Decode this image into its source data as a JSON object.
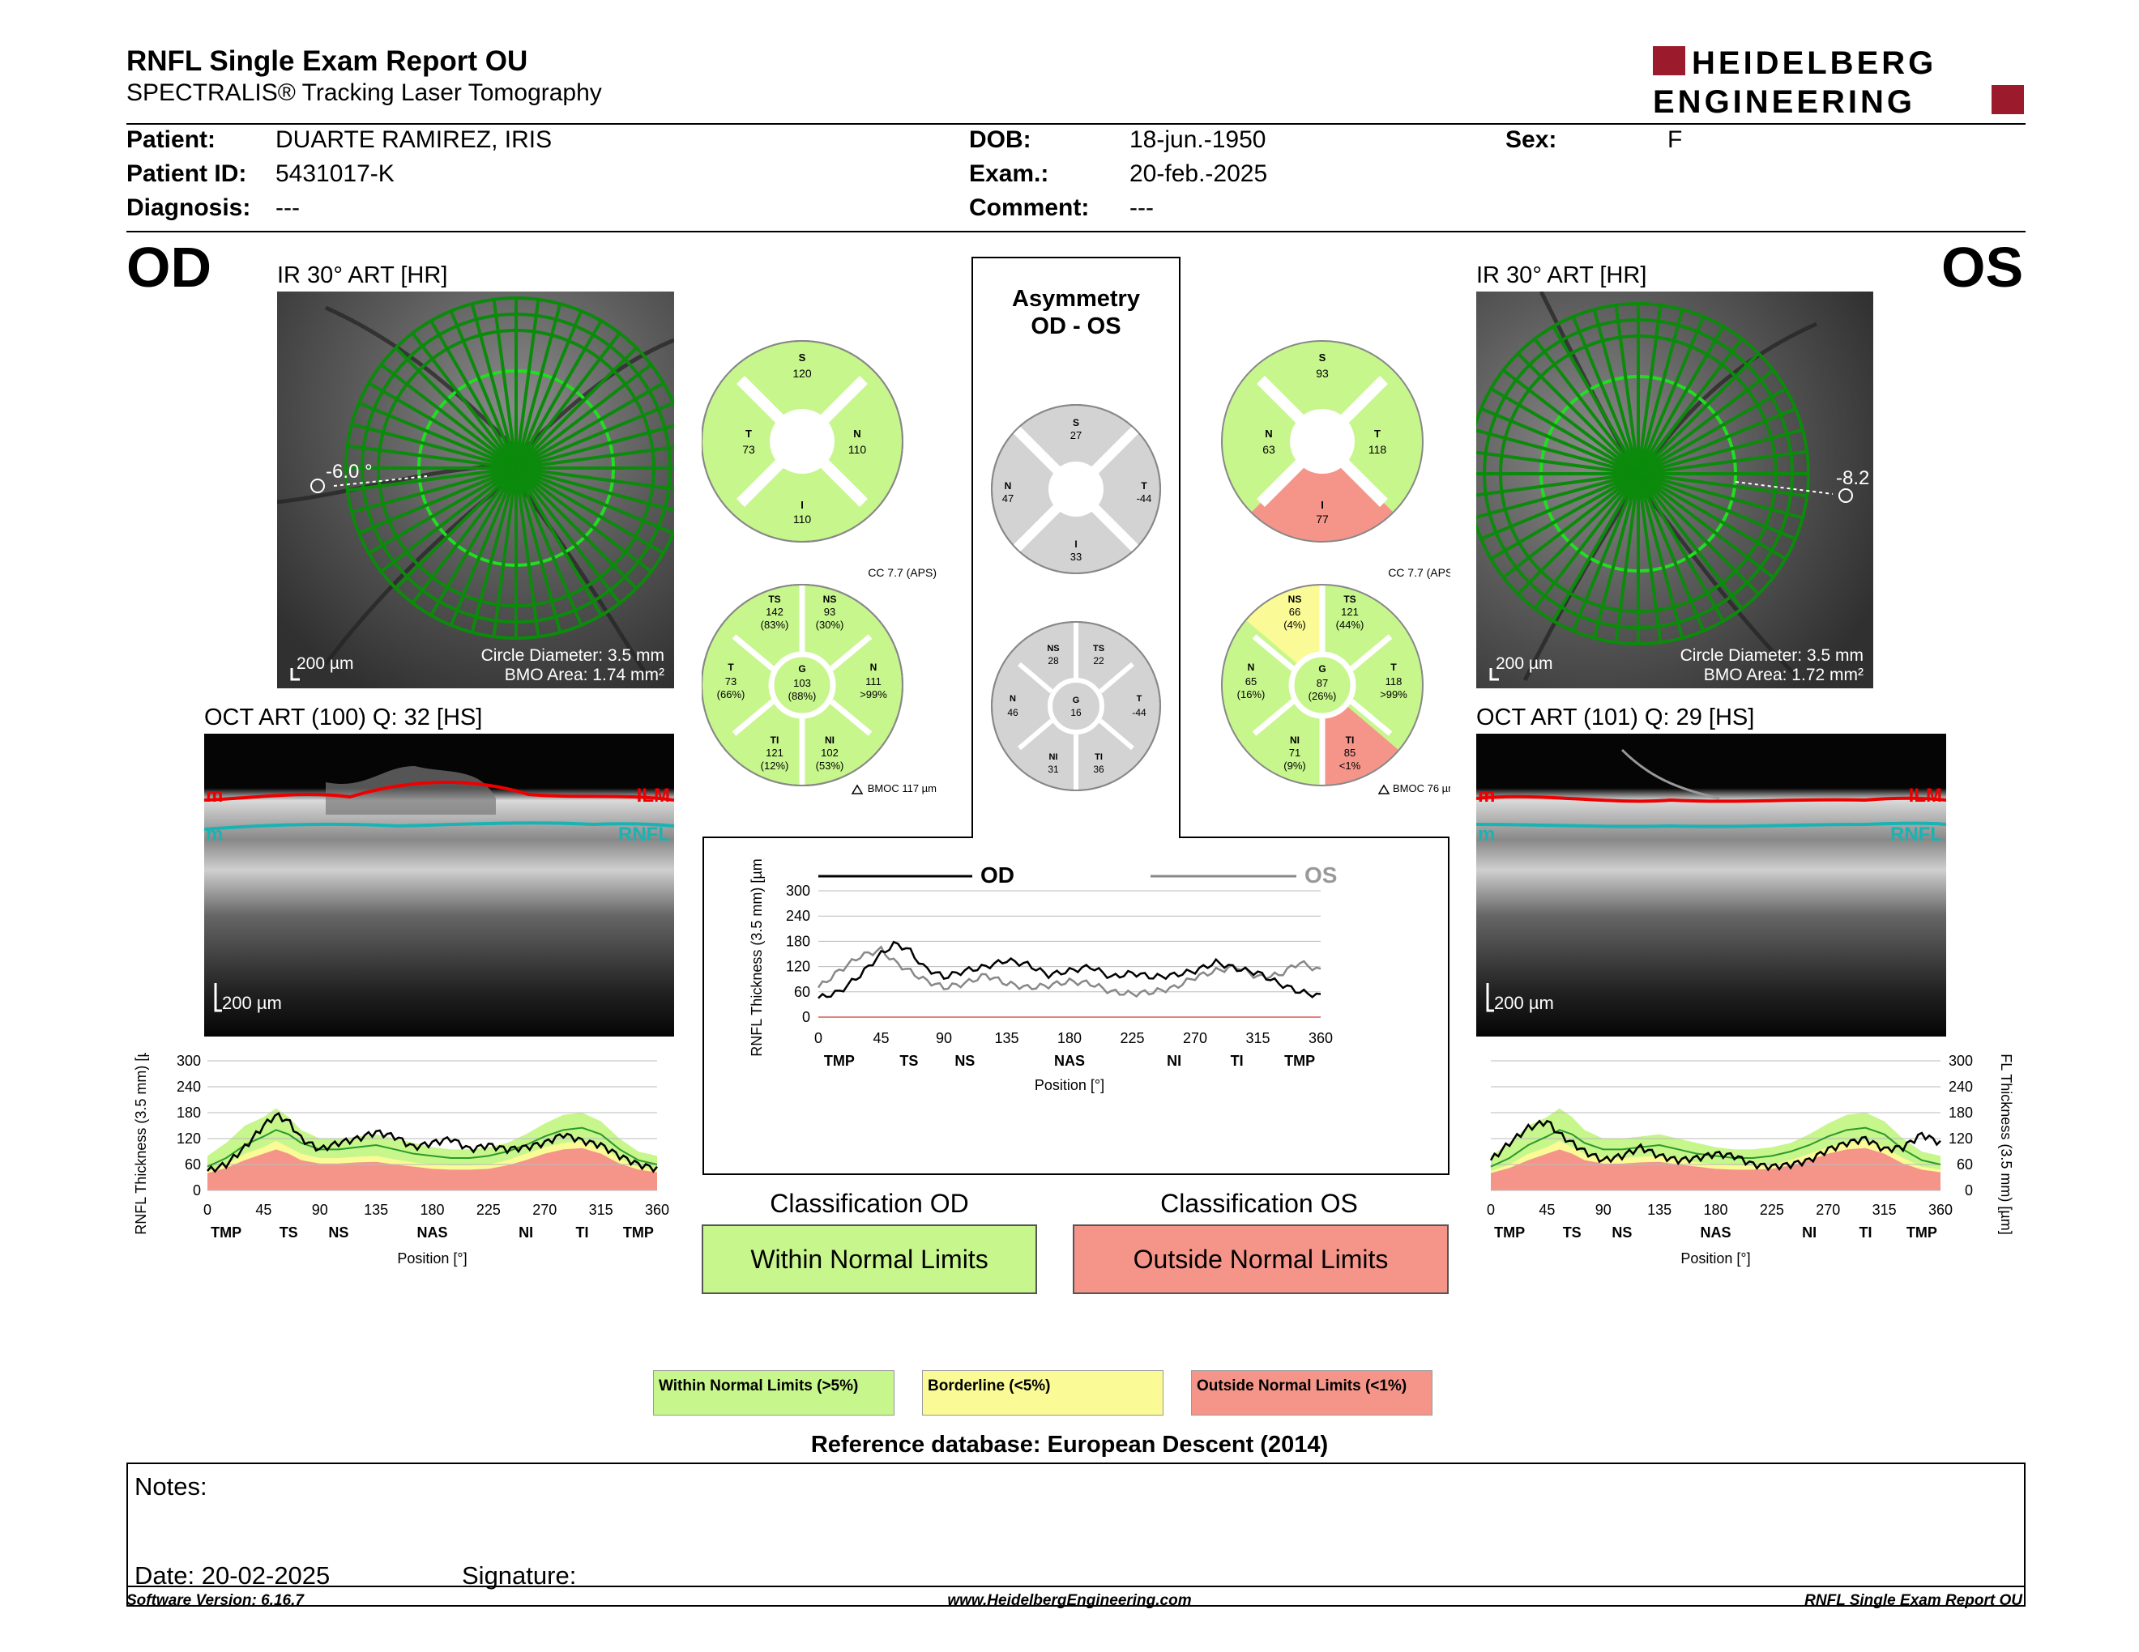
{
  "header": {
    "title": "RNFL Single Exam Report OU",
    "subtitle": "SPECTRALIS® Tracking Laser Tomography",
    "logo_line1": "HEIDELBERG",
    "logo_line2": "ENGINEERING"
  },
  "patient": {
    "patient_label": "Patient:",
    "patient_value": "DUARTE RAMIREZ, IRIS",
    "id_label": "Patient ID:",
    "id_value": "5431017-K",
    "diagnosis_label": "Diagnosis:",
    "diagnosis_value": "---",
    "dob_label": "DOB:",
    "dob_value": "18-jun.-1950",
    "exam_label": "Exam.:",
    "exam_value": "20-feb.-2025",
    "comment_label": "Comment:",
    "comment_value": "---",
    "sex_label": "Sex:",
    "sex_value": "F"
  },
  "od": {
    "eye": "OD",
    "ir_title": "IR 30° ART [HR]",
    "angle": "-6.0 °",
    "scale": "200 µm",
    "circle_diameter": "Circle Diameter: 3.5 mm",
    "bmo_area": "BMO Area: 1.74 mm²",
    "oct_title": "OCT ART (100) Q: 32 [HS]",
    "oct_scale": "200 µm",
    "ilm": "ILM",
    "ilm_cut": "m",
    "rnfl": "RNFL",
    "rnfl_cut": "m",
    "sectors6": {
      "S": "120",
      "T": "73",
      "N": "110",
      "I": "110"
    },
    "cc": "CC 7.7 (APS)",
    "bmoc": "BMOC 117 µm",
    "sectors": {
      "TS": {
        "v": "142",
        "p": "(83%)"
      },
      "NS": {
        "v": "93",
        "p": "(30%)"
      },
      "T": {
        "v": "73",
        "p": "(66%)"
      },
      "G": {
        "v": "103",
        "p": "(88%)"
      },
      "N": {
        "v": "111",
        "p": ">99%"
      },
      "TI": {
        "v": "121",
        "p": "(12%)"
      },
      "NI": {
        "v": "102",
        "p": "(53%)"
      }
    },
    "classification_title": "Classification OD",
    "classification": "Within Normal Limits"
  },
  "os": {
    "eye": "OS",
    "ir_title": "IR 30° ART [HR]",
    "angle": "-8.2",
    "scale": "200 µm",
    "circle_diameter": "Circle Diameter: 3.5 mm",
    "bmo_area": "BMO Area: 1.72 mm²",
    "oct_title": "OCT ART (101) Q: 29 [HS]",
    "oct_scale": "200 µm",
    "ilm": "ILM",
    "ilm_cut": "m",
    "rnfl": "RNFL",
    "rnfl_cut": "m",
    "sectors6": {
      "S": "93",
      "N": "63",
      "T": "118",
      "I": "77"
    },
    "cc": "CC 7.7 (APS)",
    "bmoc": "BMOC 76 µm",
    "sectors": {
      "NS": {
        "v": "66",
        "p": "(4%)"
      },
      "TS": {
        "v": "121",
        "p": "(44%)"
      },
      "N": {
        "v": "65",
        "p": "(16%)"
      },
      "G": {
        "v": "87",
        "p": "(26%)"
      },
      "T": {
        "v": "118",
        "p": ">99%"
      },
      "NI": {
        "v": "71",
        "p": "(9%)"
      },
      "TI": {
        "v": "85",
        "p": "<1%"
      }
    },
    "classification_title": "Classification OS",
    "classification": "Outside Normal Limits"
  },
  "asymmetry": {
    "title1": "Asymmetry",
    "title2": "OD - OS",
    "quad": {
      "S": "27",
      "N": "47",
      "T": "-44",
      "I": "33"
    },
    "sectors": {
      "NS": "28",
      "TS": "22",
      "N": "46",
      "G": "16",
      "T": "-44",
      "NI": "31",
      "TI": "36"
    }
  },
  "chart_labels": {
    "ylabel": "RNFL Thickness (3.5 mm) [µm]",
    "xlabel": "Position [°]",
    "yticks": [
      "0",
      "60",
      "120",
      "180",
      "240",
      "300"
    ],
    "xticks": [
      "0",
      "45",
      "90",
      "135",
      "180",
      "225",
      "270",
      "315",
      "360"
    ],
    "sector_labels": [
      "TMP",
      "TS",
      "NS",
      "NAS",
      "NI",
      "TI",
      "TMP"
    ],
    "legend_od": "OD",
    "legend_os": "OS"
  },
  "chart_data": [
    {
      "type": "line",
      "title": "",
      "xlabel": "Position [°]",
      "ylabel": "RNFL Thickness (3.5 mm) [µm]",
      "xlim": [
        0,
        360
      ],
      "ylim": [
        0,
        300
      ],
      "series": [
        {
          "name": "OD",
          "x": [
            0,
            15,
            30,
            45,
            55,
            65,
            75,
            90,
            105,
            120,
            135,
            150,
            165,
            180,
            195,
            210,
            225,
            240,
            255,
            270,
            285,
            300,
            315,
            330,
            345,
            360
          ],
          "values": [
            45,
            60,
            100,
            150,
            175,
            160,
            120,
            95,
            110,
            120,
            135,
            125,
            100,
            110,
            120,
            95,
            105,
            95,
            100,
            110,
            130,
            115,
            105,
            80,
            60,
            50
          ]
        },
        {
          "name": "OS",
          "x": [
            0,
            15,
            30,
            45,
            55,
            65,
            75,
            90,
            105,
            120,
            135,
            150,
            165,
            180,
            195,
            210,
            225,
            240,
            255,
            270,
            285,
            300,
            315,
            330,
            345,
            360
          ],
          "values": [
            70,
            110,
            145,
            160,
            130,
            110,
            90,
            70,
            80,
            100,
            80,
            70,
            75,
            85,
            80,
            60,
            55,
            60,
            70,
            95,
            110,
            120,
            95,
            100,
            130,
            110
          ]
        }
      ]
    }
  ],
  "legend": {
    "wnl": "Within Normal Limits (>5%)",
    "borderline": "Borderline (<5%)",
    "onl": "Outside Normal Limits (<1%)"
  },
  "reference": "Reference database: European Descent (2014)",
  "notes": {
    "notes_label": "Notes:",
    "date_label": "Date: 20-02-2025",
    "signature_label": "Signature:"
  },
  "footer": {
    "version": "Software Version: 6.16.7",
    "url": "www.HeidelbergEngineering.com",
    "report": "RNFL Single Exam Report OU"
  },
  "colors": {
    "green": "#c7f68c",
    "yellow": "#fafa96",
    "red": "#f5958a",
    "grey": "#d3d3d3"
  }
}
